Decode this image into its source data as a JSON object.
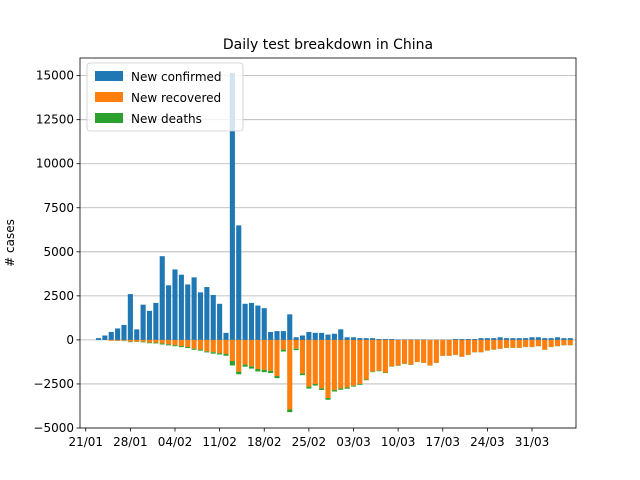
{
  "chart_data": {
    "type": "bar",
    "title": "Daily test breakdown in China",
    "xlabel": "",
    "ylabel": "# cases",
    "start_date": "2020-01-22",
    "ylim": [
      -5000,
      16000
    ],
    "yticks": [
      -5000,
      -2500,
      0,
      2500,
      5000,
      7500,
      10000,
      12500,
      15000
    ],
    "ytick_labels": [
      "−5000",
      "−2500",
      "0",
      "2500",
      "5000",
      "7500",
      "10000",
      "12500",
      "15000"
    ],
    "xtick_dates": [
      "2020-01-21",
      "2020-01-28",
      "2020-02-04",
      "2020-02-11",
      "2020-02-18",
      "2020-02-25",
      "2020-03-03",
      "2020-03-10",
      "2020-03-17",
      "2020-03-24",
      "2020-03-31"
    ],
    "xtick_labels": [
      "21/01",
      "28/01",
      "04/02",
      "11/02",
      "18/02",
      "25/02",
      "03/03",
      "10/03",
      "17/03",
      "24/03",
      "31/03"
    ],
    "grid": "y",
    "legend_position": "top-left",
    "colors": {
      "confirmed": "#1f77b4",
      "recovered": "#ff7f0e",
      "deaths": "#2ca02c"
    },
    "series": [
      {
        "name": "New confirmed",
        "key": "confirmed",
        "values": [
          0,
          100,
          250,
          450,
          650,
          850,
          2600,
          600,
          2000,
          1650,
          2100,
          4750,
          3100,
          4000,
          3700,
          3150,
          3550,
          2700,
          3000,
          2550,
          2050,
          400,
          15150,
          6500,
          2050,
          2100,
          1950,
          1800,
          450,
          500,
          500,
          1450,
          150,
          250,
          450,
          400,
          400,
          300,
          350,
          600,
          150,
          150,
          100,
          100,
          100,
          50,
          50,
          50,
          30,
          30,
          30,
          30,
          30,
          20,
          20,
          20,
          20,
          50,
          50,
          50,
          50,
          100,
          100,
          100,
          150,
          100,
          100,
          100,
          100,
          150,
          150,
          100,
          100,
          150,
          100,
          100
        ]
      },
      {
        "name": "New recovered",
        "key": "recovered",
        "values": [
          0,
          0,
          0,
          -50,
          -50,
          -50,
          -100,
          -100,
          -100,
          -150,
          -150,
          -200,
          -250,
          -300,
          -350,
          -400,
          -500,
          -550,
          -650,
          -700,
          -750,
          -800,
          -1200,
          -1800,
          -1400,
          -1500,
          -1650,
          -1700,
          -1750,
          -2050,
          -550,
          -3950,
          -500,
          -1900,
          -2650,
          -2500,
          -2750,
          -3300,
          -2850,
          -2750,
          -2700,
          -2600,
          -2500,
          -2250,
          -1800,
          -1750,
          -1850,
          -1500,
          -1450,
          -1350,
          -1400,
          -1250,
          -1300,
          -1450,
          -1300,
          -900,
          -900,
          -850,
          -950,
          -850,
          -700,
          -700,
          -600,
          -550,
          -500,
          -450,
          -450,
          -450,
          -400,
          -400,
          -350,
          -550,
          -400,
          -350,
          -300,
          -300
        ]
      },
      {
        "name": "New deaths",
        "key": "deaths",
        "values": [
          0,
          0,
          0,
          0,
          -10,
          -20,
          -30,
          -20,
          -40,
          -40,
          -50,
          -60,
          -60,
          -60,
          -60,
          -60,
          -60,
          -60,
          -60,
          -80,
          -80,
          -100,
          -250,
          -150,
          -120,
          -130,
          -140,
          -130,
          -130,
          -120,
          -110,
          -150,
          -80,
          -100,
          -110,
          -90,
          -90,
          -100,
          -80,
          -80,
          -70,
          -50,
          -50,
          -40,
          -30,
          -30,
          -30,
          -20,
          -20,
          -20,
          -20,
          -10,
          -10,
          -10,
          -10,
          -10,
          -10,
          -10,
          -10,
          -10,
          -10,
          -10,
          -10,
          -10,
          -10,
          -10,
          -10,
          -10,
          -10,
          -10,
          -10,
          -10,
          -10,
          -10,
          -10,
          -10
        ]
      }
    ]
  }
}
